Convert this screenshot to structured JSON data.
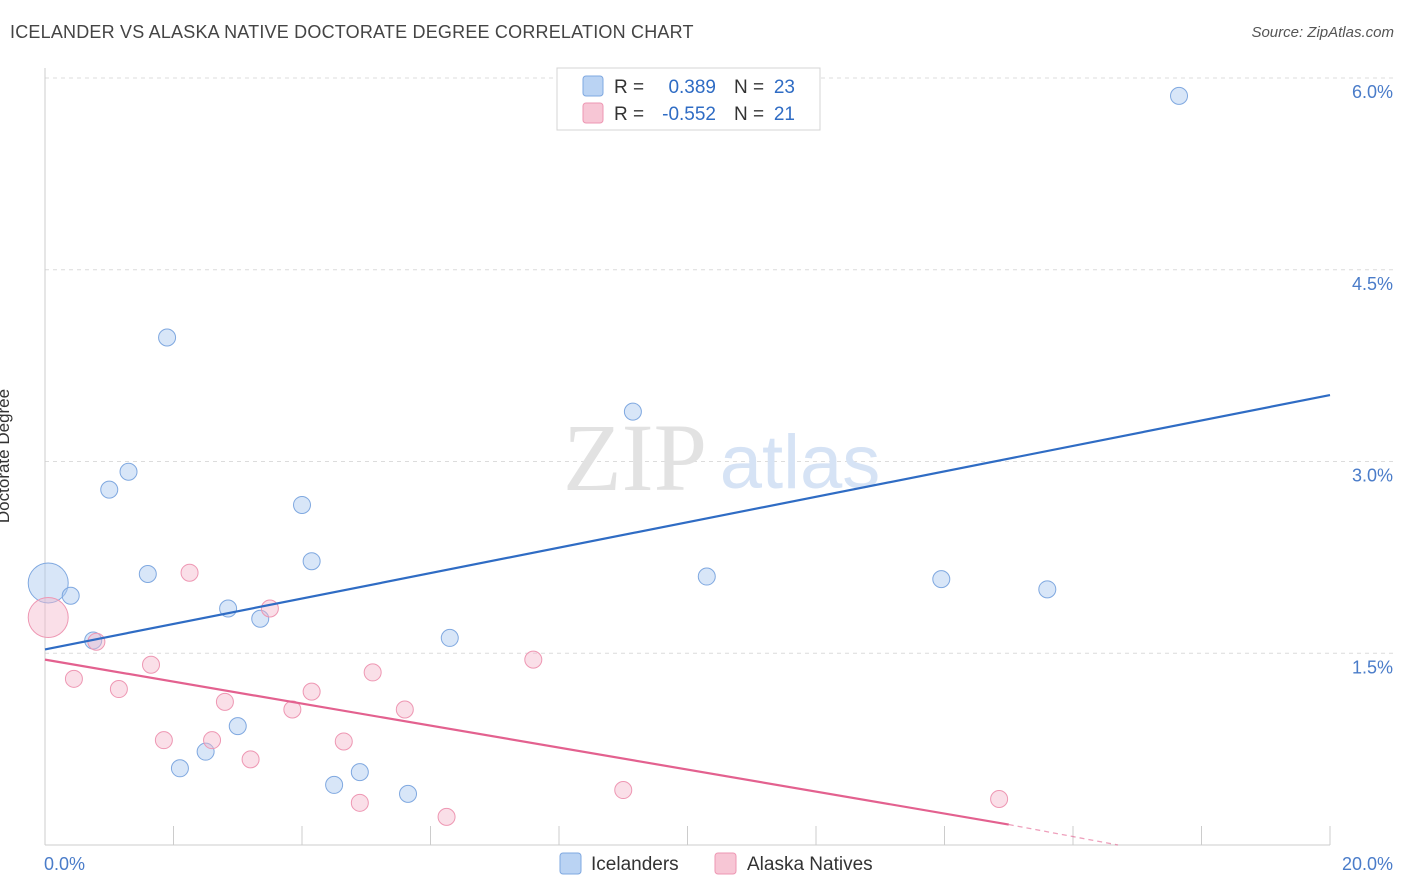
{
  "title": "ICELANDER VS ALASKA NATIVE DOCTORATE DEGREE CORRELATION CHART",
  "source": "Source: ZipAtlas.com",
  "watermark": {
    "zip": "ZIP",
    "atlas": "atlas"
  },
  "chart_data": {
    "type": "scatter",
    "ylabel": "Doctorate Degree",
    "xlim": [
      0,
      20
    ],
    "ylim": [
      0,
      6.2
    ],
    "x_tick_labels": [
      {
        "value": 0,
        "label": "0.0%"
      },
      {
        "value": 20,
        "label": "20.0%"
      }
    ],
    "y_ticks": [
      {
        "value": 1.5,
        "label": "1.5%"
      },
      {
        "value": 3.0,
        "label": "3.0%"
      },
      {
        "value": 4.5,
        "label": "4.5%"
      },
      {
        "value": 6.0,
        "label": "6.0%"
      }
    ],
    "legend": {
      "rows": [
        {
          "r_label": "R =",
          "r_value": "0.389",
          "n_label": "N =",
          "n_value": "23",
          "color": "#a9c8f0"
        },
        {
          "r_label": "R =",
          "r_value": "-0.552",
          "n_label": "N =",
          "n_value": "21",
          "color": "#f5b8cb"
        }
      ]
    },
    "series": [
      {
        "name": "Icelanders",
        "color": "#a9c8f0",
        "line_color": "#2f6cc4",
        "trend": {
          "x0": 0,
          "y0": 1.53,
          "x1": 20,
          "y1": 3.52
        },
        "points": [
          {
            "x": 0.05,
            "y": 2.05,
            "big": true
          },
          {
            "x": 0.4,
            "y": 1.95
          },
          {
            "x": 0.75,
            "y": 1.6
          },
          {
            "x": 1.0,
            "y": 2.78
          },
          {
            "x": 1.3,
            "y": 2.92
          },
          {
            "x": 1.6,
            "y": 2.12
          },
          {
            "x": 1.9,
            "y": 3.97
          },
          {
            "x": 2.1,
            "y": 0.6
          },
          {
            "x": 2.5,
            "y": 0.73
          },
          {
            "x": 2.85,
            "y": 1.85
          },
          {
            "x": 3.0,
            "y": 0.93
          },
          {
            "x": 3.35,
            "y": 1.77
          },
          {
            "x": 4.0,
            "y": 2.66
          },
          {
            "x": 4.15,
            "y": 2.22
          },
          {
            "x": 4.5,
            "y": 0.47
          },
          {
            "x": 4.9,
            "y": 0.57
          },
          {
            "x": 5.65,
            "y": 0.4
          },
          {
            "x": 6.3,
            "y": 1.62
          },
          {
            "x": 9.15,
            "y": 3.39
          },
          {
            "x": 10.3,
            "y": 2.1
          },
          {
            "x": 13.95,
            "y": 2.08
          },
          {
            "x": 15.6,
            "y": 2.0
          },
          {
            "x": 17.65,
            "y": 5.86
          }
        ]
      },
      {
        "name": "Alaska Natives",
        "color": "#f5b8cb",
        "line_color": "#e3618f",
        "trend": {
          "x0": 0,
          "y0": 1.45,
          "x1": 15.0,
          "y1": 0.16
        },
        "trend_dashed": {
          "x0": 15.0,
          "y0": 0.16,
          "x1": 16.7,
          "y1": 0.0
        },
        "points": [
          {
            "x": 0.05,
            "y": 1.78,
            "big": true
          },
          {
            "x": 0.45,
            "y": 1.3
          },
          {
            "x": 0.8,
            "y": 1.59
          },
          {
            "x": 1.15,
            "y": 1.22
          },
          {
            "x": 1.65,
            "y": 1.41
          },
          {
            "x": 1.85,
            "y": 0.82
          },
          {
            "x": 2.25,
            "y": 2.13
          },
          {
            "x": 2.8,
            "y": 1.12
          },
          {
            "x": 2.6,
            "y": 0.82
          },
          {
            "x": 3.2,
            "y": 0.67
          },
          {
            "x": 3.5,
            "y": 1.85
          },
          {
            "x": 3.85,
            "y": 1.06
          },
          {
            "x": 4.15,
            "y": 1.2
          },
          {
            "x": 4.65,
            "y": 0.81
          },
          {
            "x": 4.9,
            "y": 0.33
          },
          {
            "x": 5.1,
            "y": 1.35
          },
          {
            "x": 5.6,
            "y": 1.06
          },
          {
            "x": 6.25,
            "y": 0.22
          },
          {
            "x": 7.6,
            "y": 1.45
          },
          {
            "x": 9.0,
            "y": 0.43
          },
          {
            "x": 14.85,
            "y": 0.36
          }
        ]
      }
    ]
  }
}
